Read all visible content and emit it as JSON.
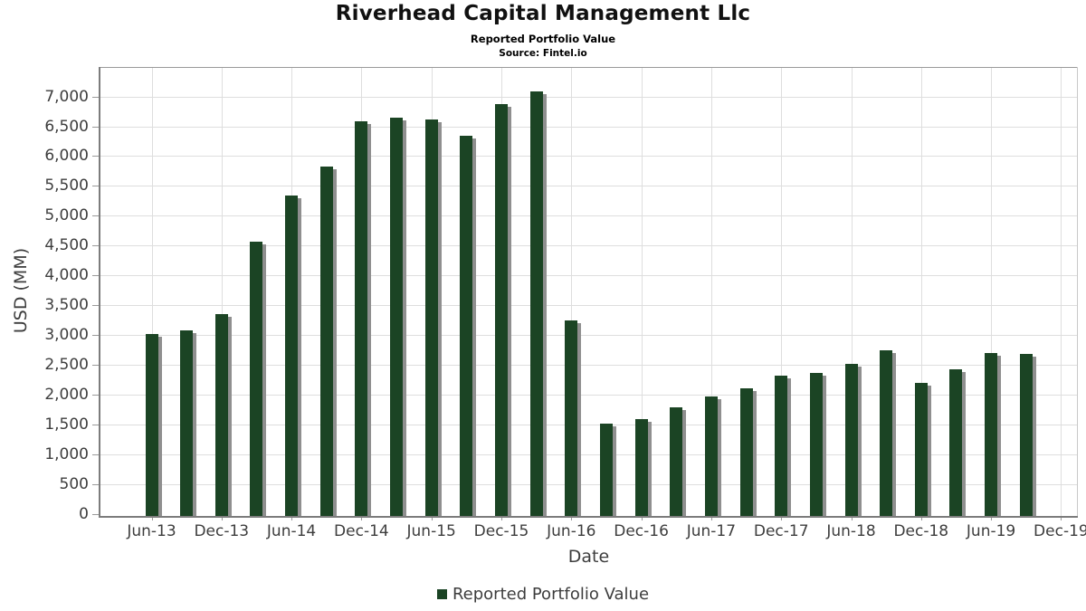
{
  "header": {
    "title": "Riverhead Capital Management Llc",
    "subtitle": "Reported Portfolio Value",
    "source": "Source: Fintel.io"
  },
  "axes": {
    "x_title": "Date",
    "y_title": "USD (MM)"
  },
  "legend": {
    "label": "Reported Portfolio Value",
    "swatch_color": "#1b4424"
  },
  "colors": {
    "bar": "#1b4424",
    "bar_shadow": "#8f8f8f",
    "grid": "#dedede",
    "axis": "#7c7c7c",
    "tick_text": "#3d3d3d"
  },
  "chart_data": {
    "type": "bar",
    "title": "Riverhead Capital Management Llc",
    "subtitle": "Reported Portfolio Value",
    "source": "Source: Fintel.io",
    "xlabel": "Date",
    "ylabel": "USD (MM)",
    "ylim": [
      0,
      7480
    ],
    "ytick_interval": 500,
    "ytick_max_labeled": 7000,
    "grid": true,
    "legend_position": "bottom-center",
    "series_name": "Reported Portfolio Value",
    "categories": [
      "Jun-13",
      "Sep-13",
      "Dec-13",
      "Mar-14",
      "Jun-14",
      "Sep-14",
      "Dec-14",
      "Mar-15",
      "Jun-15",
      "Sep-15",
      "Dec-15",
      "Mar-16",
      "Jun-16",
      "Sep-16",
      "Dec-16",
      "Mar-17",
      "Jun-17",
      "Sep-17",
      "Dec-17",
      "Mar-18",
      "Jun-18",
      "Sep-18",
      "Dec-18",
      "Mar-19",
      "Jun-19",
      "Sep-19"
    ],
    "values": [
      3010,
      3070,
      3350,
      4560,
      5340,
      5820,
      6590,
      6640,
      6620,
      6340,
      6880,
      7090,
      3250,
      1510,
      1590,
      1780,
      1970,
      2100,
      2320,
      2360,
      2510,
      2740,
      2200,
      2430,
      2690,
      2680
    ],
    "x_tick_labels": [
      "Jun-13",
      "Dec-13",
      "Jun-14",
      "Dec-14",
      "Jun-15",
      "Dec-15",
      "Jun-16",
      "Dec-16",
      "Jun-17",
      "Dec-17",
      "Jun-18",
      "Dec-18",
      "Jun-19",
      "Dec-19"
    ]
  }
}
